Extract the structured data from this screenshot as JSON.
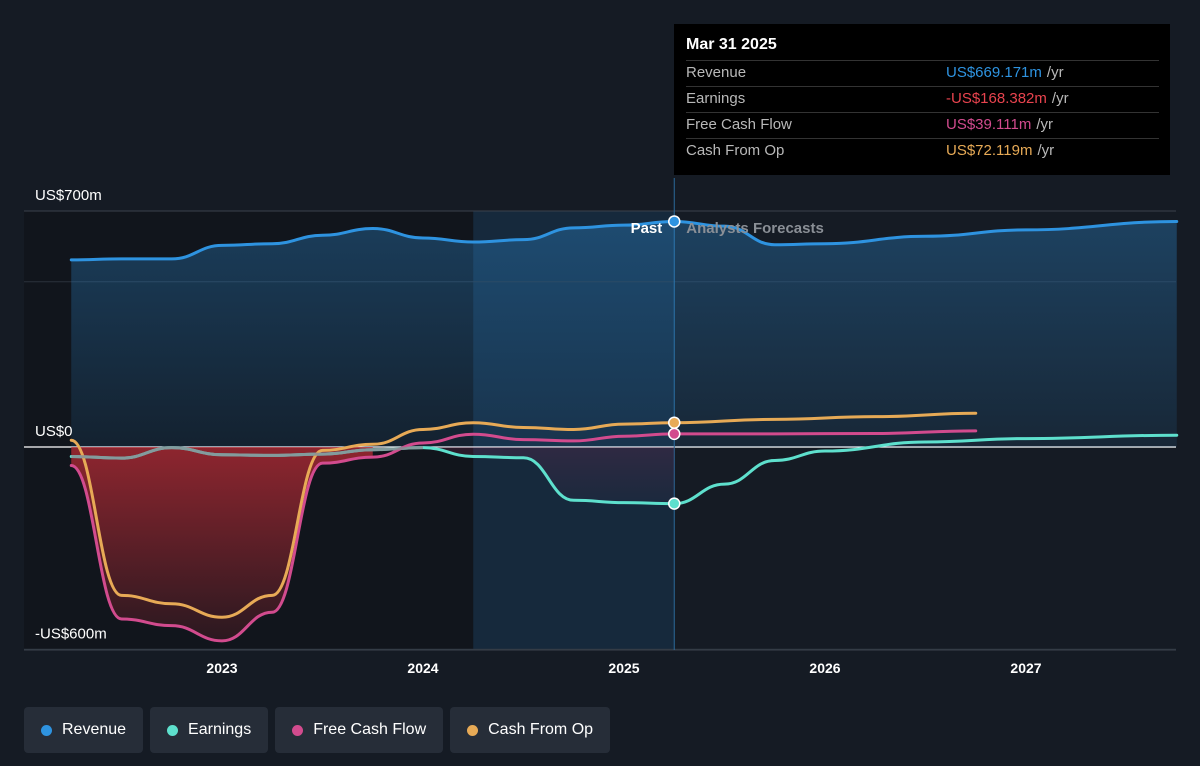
{
  "chart_data": {
    "type": "line",
    "title": "",
    "y_axis": {
      "labels": [
        "US$700m",
        "US$0",
        "-US$600m"
      ],
      "tick_values": [
        700,
        0,
        -600
      ],
      "ylim": [
        -600,
        700
      ],
      "unit": "US$m"
    },
    "x_axis": {
      "tick_labels": [
        "2023",
        "2024",
        "2025",
        "2026",
        "2027"
      ],
      "tick_values": [
        2023,
        2024,
        2025,
        2026,
        2027
      ],
      "xlim": [
        2022.0,
        2027.75
      ]
    },
    "divider": {
      "x": 2025.25,
      "past_label": "Past",
      "future_label": "Analysts Forecasts"
    },
    "series": [
      {
        "name": "Revenue",
        "color": "#2e93e0",
        "points": [
          [
            2022.25,
            555
          ],
          [
            2022.5,
            558
          ],
          [
            2022.75,
            558
          ],
          [
            2023.0,
            598
          ],
          [
            2023.25,
            603
          ],
          [
            2023.5,
            628
          ],
          [
            2023.75,
            648
          ],
          [
            2024.0,
            620
          ],
          [
            2024.25,
            608
          ],
          [
            2024.5,
            615
          ],
          [
            2024.75,
            650
          ],
          [
            2025.0,
            658
          ],
          [
            2025.25,
            669
          ]
        ],
        "forecast": [
          [
            2025.25,
            669
          ],
          [
            2025.5,
            655
          ],
          [
            2025.75,
            600
          ],
          [
            2026.0,
            603
          ],
          [
            2026.5,
            625
          ],
          [
            2027.0,
            644
          ],
          [
            2027.75,
            669
          ]
        ]
      },
      {
        "name": "Earnings",
        "color": "#5ee0cd",
        "points": [
          [
            2022.25,
            -28
          ],
          [
            2022.5,
            -33
          ],
          [
            2022.75,
            -2
          ],
          [
            2023.0,
            -23
          ],
          [
            2023.25,
            -25
          ],
          [
            2023.5,
            -21
          ],
          [
            2023.75,
            -8
          ],
          [
            2024.0,
            -2
          ],
          [
            2024.25,
            -28
          ],
          [
            2024.5,
            -32
          ],
          [
            2024.75,
            -158
          ],
          [
            2025.0,
            -165
          ],
          [
            2025.25,
            -168
          ]
        ],
        "forecast": [
          [
            2025.25,
            -168
          ],
          [
            2025.5,
            -110
          ],
          [
            2025.75,
            -40
          ],
          [
            2026.0,
            -12
          ],
          [
            2026.5,
            15
          ],
          [
            2027.0,
            25
          ],
          [
            2027.75,
            35
          ]
        ]
      },
      {
        "name": "Free Cash Flow",
        "color": "#d24b8e",
        "points": [
          [
            2022.25,
            -55
          ],
          [
            2022.5,
            -510
          ],
          [
            2022.75,
            -530
          ],
          [
            2023.0,
            -575
          ],
          [
            2023.25,
            -490
          ],
          [
            2023.5,
            -48
          ],
          [
            2023.75,
            -30
          ],
          [
            2024.0,
            12
          ],
          [
            2024.25,
            38
          ],
          [
            2024.5,
            22
          ],
          [
            2024.75,
            18
          ],
          [
            2025.0,
            32
          ],
          [
            2025.25,
            39
          ]
        ],
        "forecast": [
          [
            2025.25,
            39
          ],
          [
            2025.75,
            39
          ],
          [
            2026.25,
            40
          ],
          [
            2026.75,
            48
          ]
        ]
      },
      {
        "name": "Cash From Op",
        "color": "#e7aa56",
        "points": [
          [
            2022.25,
            20
          ],
          [
            2022.5,
            -440
          ],
          [
            2022.75,
            -465
          ],
          [
            2023.0,
            -505
          ],
          [
            2023.25,
            -440
          ],
          [
            2023.5,
            -10
          ],
          [
            2023.75,
            8
          ],
          [
            2024.0,
            52
          ],
          [
            2024.25,
            72
          ],
          [
            2024.5,
            58
          ],
          [
            2024.75,
            52
          ],
          [
            2025.0,
            68
          ],
          [
            2025.25,
            72
          ]
        ],
        "forecast": [
          [
            2025.25,
            72
          ],
          [
            2025.75,
            82
          ],
          [
            2026.25,
            90
          ],
          [
            2026.75,
            100
          ]
        ]
      }
    ]
  },
  "tooltip": {
    "date": "Mar 31 2025",
    "rows": [
      {
        "label": "Revenue",
        "value": "US$669.171m",
        "unit": "/yr",
        "color": "#2e93e0"
      },
      {
        "label": "Earnings",
        "value": "-US$168.382m",
        "unit": "/yr",
        "color": "#e8434e"
      },
      {
        "label": "Free Cash Flow",
        "value": "US$39.111m",
        "unit": "/yr",
        "color": "#d24b8e"
      },
      {
        "label": "Cash From Op",
        "value": "US$72.119m",
        "unit": "/yr",
        "color": "#e7aa56"
      }
    ]
  },
  "legend": [
    {
      "label": "Revenue",
      "color": "#2e93e0"
    },
    {
      "label": "Earnings",
      "color": "#5ee0cd"
    },
    {
      "label": "Free Cash Flow",
      "color": "#d24b8e"
    },
    {
      "label": "Cash From Op",
      "color": "#e7aa56"
    }
  ]
}
